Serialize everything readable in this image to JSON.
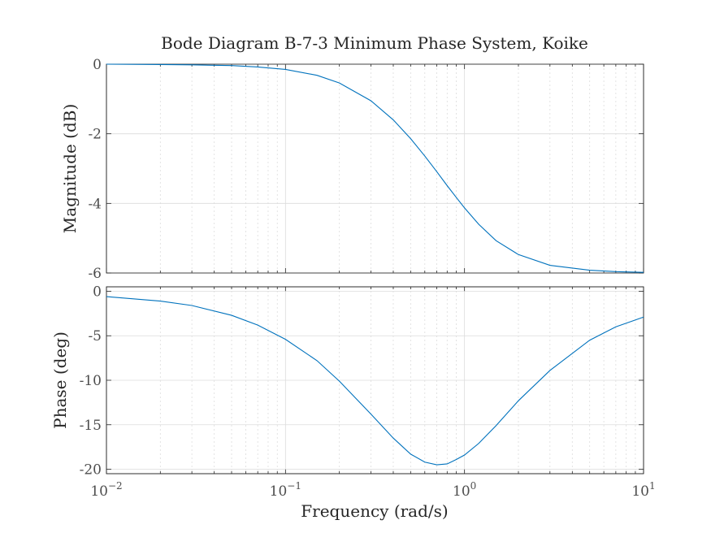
{
  "chart_data": {
    "type": "line",
    "title": "Bode Diagram B-7-3 Minimum Phase System, Koike",
    "xlabel": "Frequency (rad/s)",
    "xscale": "log",
    "xlim": [
      0.01,
      10
    ],
    "x_ticks": [
      {
        "value": 0.01,
        "base": "10",
        "exp": "−2"
      },
      {
        "value": 0.1,
        "base": "10",
        "exp": "−1"
      },
      {
        "value": 1,
        "base": "10",
        "exp": "0"
      },
      {
        "value": 10,
        "base": "10",
        "exp": "1"
      }
    ],
    "grid": true,
    "line_color": "#0072bd",
    "x": [
      0.01,
      0.02,
      0.03,
      0.05,
      0.07,
      0.1,
      0.15,
      0.2,
      0.3,
      0.4,
      0.5,
      0.6,
      0.7,
      0.8,
      0.9,
      1.0,
      1.2,
      1.5,
      2.0,
      3.0,
      5.0,
      7.0,
      10.0
    ],
    "panels": [
      {
        "ylabel": "Magnitude (dB)",
        "ylim": [
          -6,
          0
        ],
        "yticks": [
          0,
          -2,
          -4,
          -6
        ],
        "y": [
          0.0,
          -0.01,
          -0.02,
          -0.04,
          -0.08,
          -0.15,
          -0.32,
          -0.54,
          -1.05,
          -1.6,
          -2.14,
          -2.64,
          -3.09,
          -3.49,
          -3.83,
          -4.13,
          -4.6,
          -5.07,
          -5.47,
          -5.78,
          -5.92,
          -5.96,
          -5.98
        ]
      },
      {
        "ylabel": "Phase (deg)",
        "ylim": [
          -20.5,
          0.5
        ],
        "yticks": [
          0,
          -5,
          -10,
          -15,
          -20
        ],
        "y": [
          -0.6,
          -1.1,
          -1.6,
          -2.7,
          -3.8,
          -5.4,
          -7.8,
          -10.1,
          -13.8,
          -16.5,
          -18.3,
          -19.2,
          -19.5,
          -19.4,
          -18.9,
          -18.4,
          -17.1,
          -15.1,
          -12.3,
          -8.9,
          -5.5,
          -4.0,
          -2.9
        ]
      }
    ]
  }
}
